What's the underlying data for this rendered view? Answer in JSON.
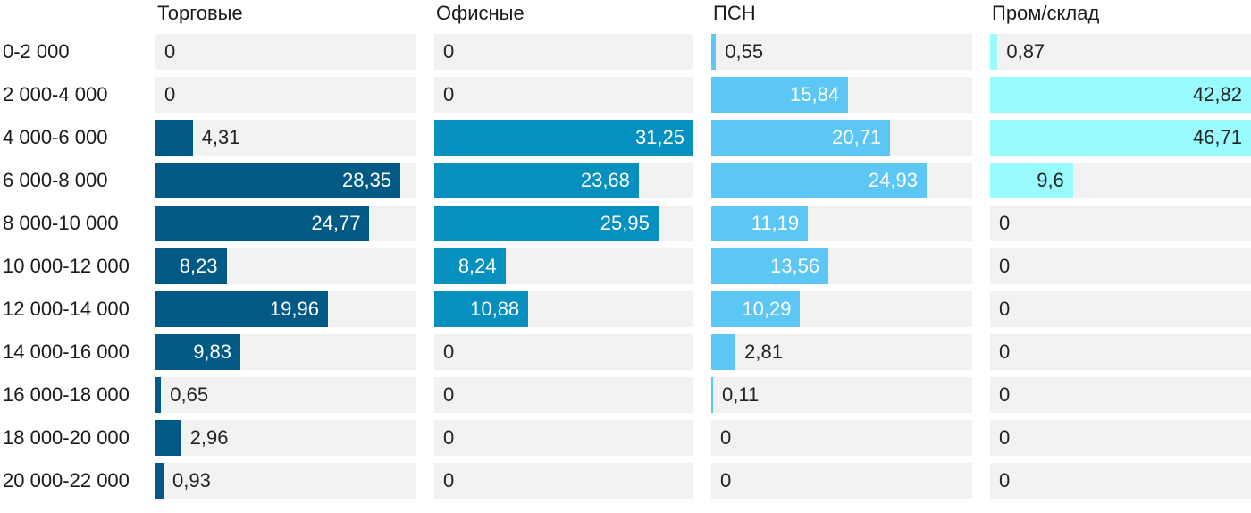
{
  "chart_data": {
    "type": "bar",
    "orientation": "horizontal",
    "layout": "small-multiples",
    "categories": [
      "0-2 000",
      "2 000-4 000",
      "4 000-6 000",
      "6 000-8 000",
      "8 000-10 000",
      "10 000-12 000",
      "12 000-14 000",
      "14 000-16 000",
      "16 000-18 000",
      "18 000-20 000",
      "20 000-22 000"
    ],
    "xlim": [
      0,
      50
    ],
    "grid": false,
    "legend": "none",
    "series": [
      {
        "name": "Торговые",
        "color": "#005a85",
        "values": [
          0,
          0,
          4.31,
          28.35,
          24.77,
          8.23,
          19.96,
          9.83,
          0.65,
          2.96,
          0.93
        ],
        "labels": [
          "0",
          "0",
          "4,31",
          "28,35",
          "24,77",
          "8,23",
          "19,96",
          "9,83",
          "0,65",
          "2,96",
          "0,93"
        ]
      },
      {
        "name": "Офисные",
        "color": "#0590bf",
        "values": [
          0,
          0,
          31.25,
          23.68,
          25.95,
          8.24,
          10.88,
          0,
          0,
          0,
          0
        ],
        "labels": [
          "0",
          "0",
          "31,25",
          "23,68",
          "25,95",
          "8,24",
          "10,88",
          "0",
          "0",
          "0",
          "0"
        ]
      },
      {
        "name": "ПСН",
        "color": "#5cc6f4",
        "values": [
          0.55,
          15.84,
          20.71,
          24.93,
          11.19,
          13.56,
          10.29,
          2.81,
          0.11,
          0,
          0
        ],
        "labels": [
          "0,55",
          "15,84",
          "20,71",
          "24,93",
          "11,19",
          "13,56",
          "10,29",
          "2,81",
          "0,11",
          "0",
          "0"
        ]
      },
      {
        "name": "Пром/склад",
        "color": "#99fbfe",
        "values": [
          0.87,
          42.82,
          46.71,
          9.6,
          0,
          0,
          0,
          0,
          0,
          0,
          0
        ],
        "labels": [
          "0,87",
          "42,82",
          "46,71",
          "9,6",
          "0",
          "0",
          "0",
          "0",
          "0",
          "0",
          "0"
        ]
      }
    ]
  }
}
